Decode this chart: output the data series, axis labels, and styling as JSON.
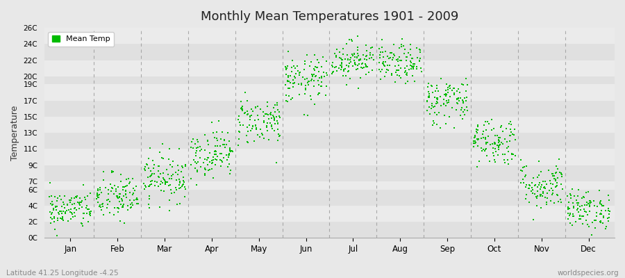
{
  "title": "Monthly Mean Temperatures 1901 - 2009",
  "ylabel": "Temperature",
  "subtitle": "Latitude 41.25 Longitude -4.25",
  "watermark": "worldspecies.org",
  "legend_label": "Mean Temp",
  "dot_color": "#00bb00",
  "bg_color": "#e8e8e8",
  "months": [
    "Jan",
    "Feb",
    "Mar",
    "Apr",
    "May",
    "Jun",
    "Jul",
    "Aug",
    "Sep",
    "Oct",
    "Nov",
    "Dec"
  ],
  "month_means": [
    3.5,
    5.0,
    7.5,
    10.5,
    14.5,
    19.5,
    22.0,
    21.5,
    17.0,
    12.0,
    6.5,
    3.5
  ],
  "month_stds": [
    1.2,
    1.5,
    1.5,
    1.5,
    1.5,
    1.5,
    1.2,
    1.2,
    1.5,
    1.5,
    1.5,
    1.2
  ],
  "n_years": 109,
  "seed": 42,
  "ytick_vals": [
    0,
    2,
    4,
    6,
    7,
    9,
    11,
    13,
    15,
    17,
    19,
    20,
    22,
    24,
    26
  ],
  "ytick_labels": [
    "0C",
    "2C",
    "4C",
    "6C",
    "7C",
    "9C",
    "11C",
    "13C",
    "15C",
    "17C",
    "19C",
    "20C",
    "22C",
    "24C",
    "26C"
  ],
  "band_colors": [
    "#e0e0e0",
    "#ebebeb",
    "#e0e0e0",
    "#ebebeb",
    "#e0e0e0",
    "#ebebeb",
    "#e0e0e0",
    "#ebebeb",
    "#e0e0e0",
    "#ebebeb",
    "#e0e0e0",
    "#ebebeb",
    "#e0e0e0",
    "#ebebeb"
  ],
  "vline_color": "#999999",
  "dot_size": 4,
  "figsize": [
    9.0,
    4.0
  ],
  "dpi": 100
}
